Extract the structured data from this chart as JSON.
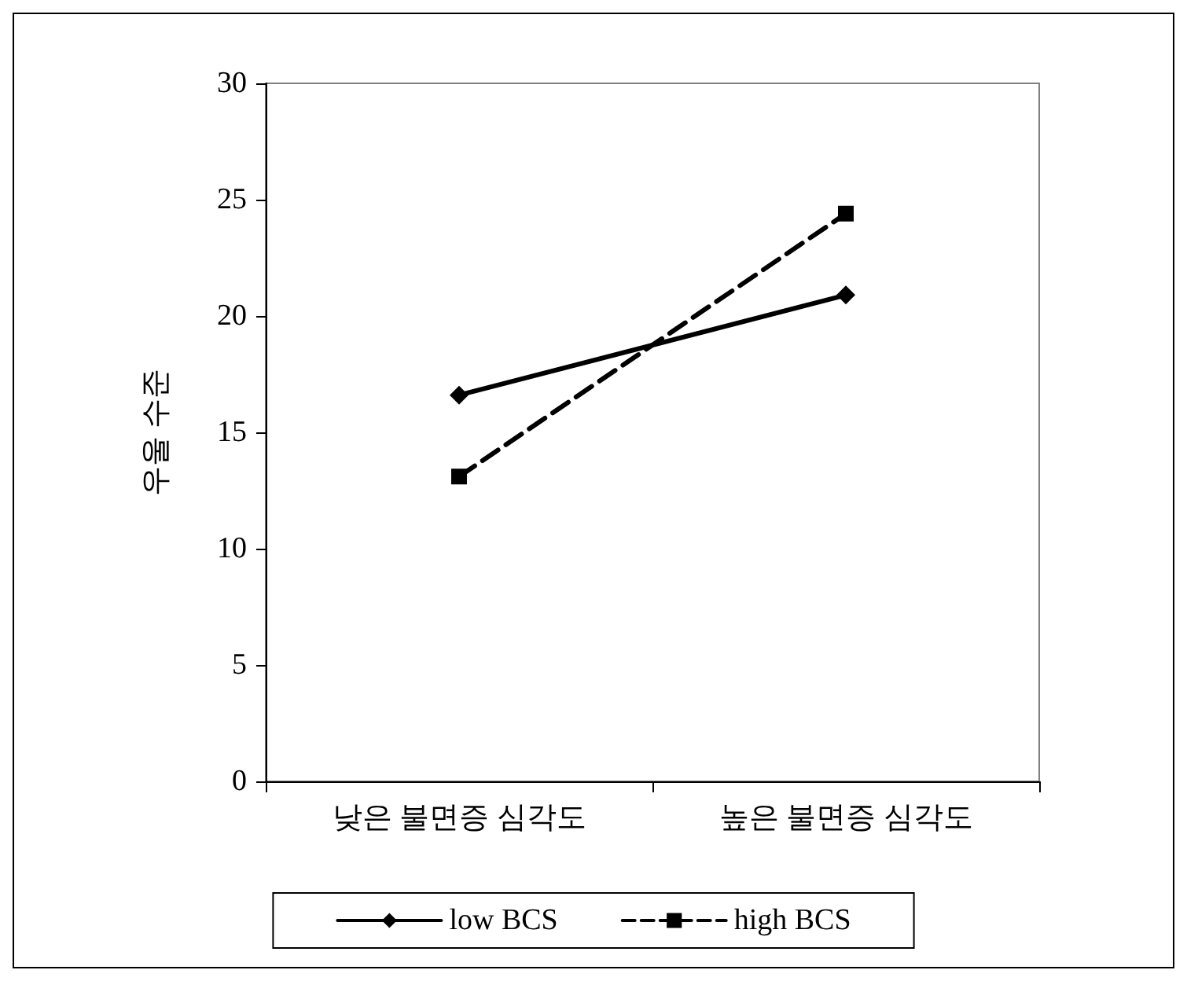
{
  "chart_data": {
    "type": "line",
    "ylabel": "우울 수준",
    "categories": [
      "낮은 불면증 심각도",
      "높은 불면증 심각도"
    ],
    "series": [
      {
        "name": "low BCS",
        "color": "#000000",
        "values": [
          16.6,
          20.9
        ],
        "marker": "diamond",
        "line_style": "solid"
      },
      {
        "name": "high BCS",
        "color": "#000000",
        "values": [
          13.1,
          24.4
        ],
        "marker": "square",
        "line_style": "dashed"
      }
    ],
    "ylim": [
      0,
      30
    ],
    "yticks": [
      0,
      5,
      10,
      15,
      20,
      25,
      30
    ],
    "grid": false,
    "legend": "bottom"
  }
}
